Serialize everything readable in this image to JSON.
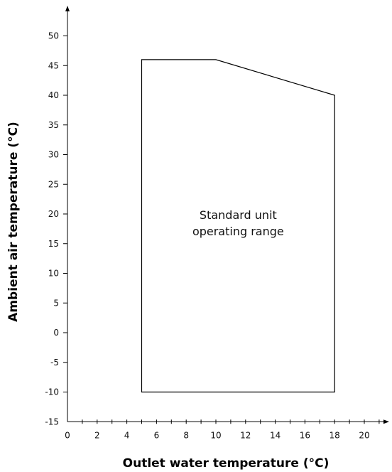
{
  "chart_data": {
    "type": "area",
    "title": "",
    "xlabel": "Outlet water temperature (°C)",
    "ylabel": "Ambient air temperature (°C)",
    "xlim": [
      0,
      22
    ],
    "ylim": [
      -15,
      55
    ],
    "x_ticks": [
      0,
      2,
      4,
      6,
      8,
      10,
      12,
      14,
      16,
      18,
      20
    ],
    "x_minor_step": 1,
    "y_ticks": [
      -15,
      -10,
      -5,
      0,
      5,
      10,
      15,
      20,
      25,
      30,
      35,
      40,
      45,
      50
    ],
    "grid": false,
    "series": [
      {
        "name": "",
        "label_lines": [
          "Standard unit",
          "operating range"
        ],
        "polygon": [
          {
            "x": 5,
            "y": -10
          },
          {
            "x": 5,
            "y": 46
          },
          {
            "x": 10,
            "y": 46
          },
          {
            "x": 18,
            "y": 40
          },
          {
            "x": 18,
            "y": -10
          }
        ]
      }
    ]
  }
}
